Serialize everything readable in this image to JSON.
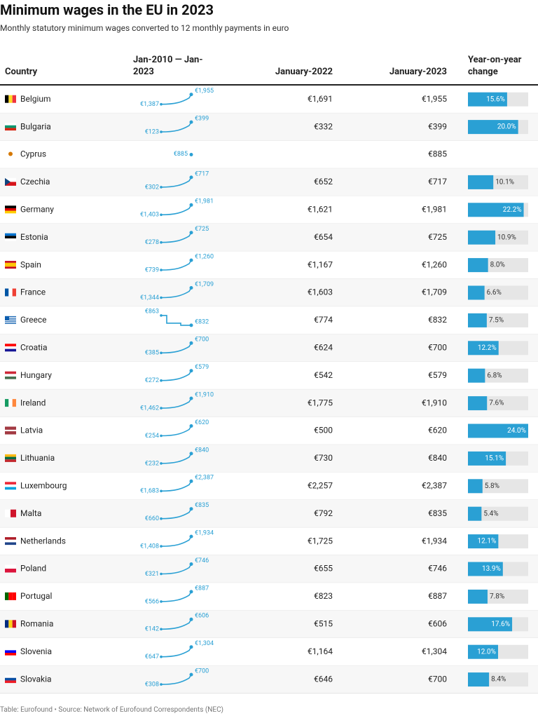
{
  "header": {
    "title": "Minimum wages in the EU in 2023",
    "subtitle": "Monthly statutory minimum wages converted to 12 monthly payments in euro"
  },
  "table": {
    "columns": [
      "Country",
      "Jan-2010 — Jan-2023",
      "January-2022",
      "January-2023",
      "Year-on-year change"
    ],
    "rows": [
      {
        "country": "Belgium",
        "spark_start": "€1,387",
        "spark_end": "€1,955",
        "jan2022": "€1,691",
        "jan2023": "€1,955",
        "change": 15.6,
        "change_label": "15.6%"
      },
      {
        "country": "Bulgaria",
        "spark_start": "€123",
        "spark_end": "€399",
        "jan2022": "€332",
        "jan2023": "€399",
        "change": 20.0,
        "change_label": "20.0%"
      },
      {
        "country": "Cyprus",
        "spark_start": null,
        "spark_end": "€885",
        "jan2022": null,
        "jan2023": "€885",
        "change": null,
        "change_label": null
      },
      {
        "country": "Czechia",
        "spark_start": "€302",
        "spark_end": "€717",
        "jan2022": "€652",
        "jan2023": "€717",
        "change": 10.1,
        "change_label": "10.1%"
      },
      {
        "country": "Germany",
        "spark_start": "€1,403",
        "spark_end": "€1,981",
        "jan2022": "€1,621",
        "jan2023": "€1,981",
        "change": 22.2,
        "change_label": "22.2%"
      },
      {
        "country": "Estonia",
        "spark_start": "€278",
        "spark_end": "€725",
        "jan2022": "€654",
        "jan2023": "€725",
        "change": 10.9,
        "change_label": "10.9%"
      },
      {
        "country": "Spain",
        "spark_start": "€739",
        "spark_end": "€1,260",
        "jan2022": "€1,167",
        "jan2023": "€1,260",
        "change": 8.0,
        "change_label": "8.0%"
      },
      {
        "country": "France",
        "spark_start": "€1,344",
        "spark_end": "€1,709",
        "jan2022": "€1,603",
        "jan2023": "€1,709",
        "change": 6.6,
        "change_label": "6.6%"
      },
      {
        "country": "Greece",
        "spark_start": "€863",
        "spark_end": "€832",
        "jan2022": "€774",
        "jan2023": "€832",
        "change": 7.5,
        "change_label": "7.5%"
      },
      {
        "country": "Croatia",
        "spark_start": "€385",
        "spark_end": "€700",
        "jan2022": "€624",
        "jan2023": "€700",
        "change": 12.2,
        "change_label": "12.2%"
      },
      {
        "country": "Hungary",
        "spark_start": "€272",
        "spark_end": "€579",
        "jan2022": "€542",
        "jan2023": "€579",
        "change": 6.8,
        "change_label": "6.8%"
      },
      {
        "country": "Ireland",
        "spark_start": "€1,462",
        "spark_end": "€1,910",
        "jan2022": "€1,775",
        "jan2023": "€1,910",
        "change": 7.6,
        "change_label": "7.6%"
      },
      {
        "country": "Latvia",
        "spark_start": "€254",
        "spark_end": "€620",
        "jan2022": "€500",
        "jan2023": "€620",
        "change": 24.0,
        "change_label": "24.0%"
      },
      {
        "country": "Lithuania",
        "spark_start": "€232",
        "spark_end": "€840",
        "jan2022": "€730",
        "jan2023": "€840",
        "change": 15.1,
        "change_label": "15.1%"
      },
      {
        "country": "Luxembourg",
        "spark_start": "€1,683",
        "spark_end": "€2,387",
        "jan2022": "€2,257",
        "jan2023": "€2,387",
        "change": 5.8,
        "change_label": "5.8%"
      },
      {
        "country": "Malta",
        "spark_start": "€660",
        "spark_end": "€835",
        "jan2022": "€792",
        "jan2023": "€835",
        "change": 5.4,
        "change_label": "5.4%"
      },
      {
        "country": "Netherlands",
        "spark_start": "€1,408",
        "spark_end": "€1,934",
        "jan2022": "€1,725",
        "jan2023": "€1,934",
        "change": 12.1,
        "change_label": "12.1%"
      },
      {
        "country": "Poland",
        "spark_start": "€321",
        "spark_end": "€746",
        "jan2022": "€655",
        "jan2023": "€746",
        "change": 13.9,
        "change_label": "13.9%"
      },
      {
        "country": "Portugal",
        "spark_start": "€566",
        "spark_end": "€887",
        "jan2022": "€823",
        "jan2023": "€887",
        "change": 7.8,
        "change_label": "7.8%"
      },
      {
        "country": "Romania",
        "spark_start": "€142",
        "spark_end": "€606",
        "jan2022": "€515",
        "jan2023": "€606",
        "change": 17.6,
        "change_label": "17.6%"
      },
      {
        "country": "Slovenia",
        "spark_start": "€647",
        "spark_end": "€1,304",
        "jan2022": "€1,164",
        "jan2023": "€1,304",
        "change": 12.0,
        "change_label": "12.0%"
      },
      {
        "country": "Slovakia",
        "spark_start": "€308",
        "spark_end": "€700",
        "jan2022": "€646",
        "jan2023": "€700",
        "change": 8.4,
        "change_label": "8.4%"
      }
    ]
  },
  "footer": "Table: Eurofound • Source: Network of Eurofound Correspondents (NEC)"
}
